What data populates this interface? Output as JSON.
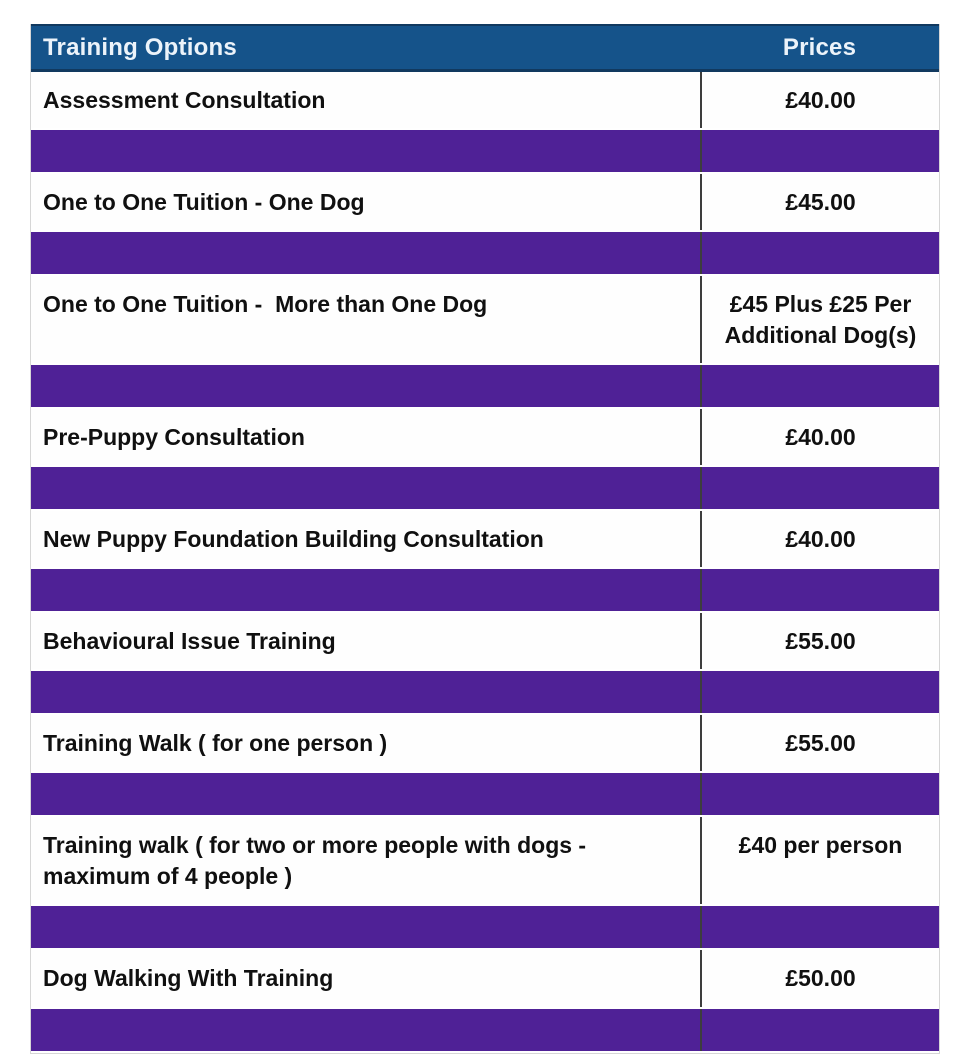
{
  "table": {
    "header": {
      "options_label": "Training Options",
      "prices_label": "Prices"
    },
    "rows": [
      {
        "name": "Assessment Consultation",
        "price": "£40.00"
      },
      {
        "name": "One to One Tuition - One Dog",
        "price": "£45.00"
      },
      {
        "name": "One to One Tuition -  More than One Dog",
        "price": "£45 Plus £25 Per Additional Dog(s)"
      },
      {
        "name": "Pre-Puppy Consultation",
        "price": "£40.00"
      },
      {
        "name": "New Puppy Foundation Building Consultation",
        "price": "£40.00"
      },
      {
        "name": "Behavioural Issue Training",
        "price": "£55.00"
      },
      {
        "name": "Training Walk ( for one person )",
        "price": "£55.00"
      },
      {
        "name": "Training walk ( for two or more people with dogs - maximum of 4 people )",
        "price": "£40 per person"
      },
      {
        "name": "Dog Walking With Training",
        "price": "£50.00"
      }
    ],
    "colors": {
      "header_bg": "#15538A",
      "header_text": "#ECF3FA",
      "spacer_bg": "#4F2196",
      "row_bg": "#FEFEFE",
      "row_text": "#101010",
      "divider": "#3D3D3D"
    }
  }
}
